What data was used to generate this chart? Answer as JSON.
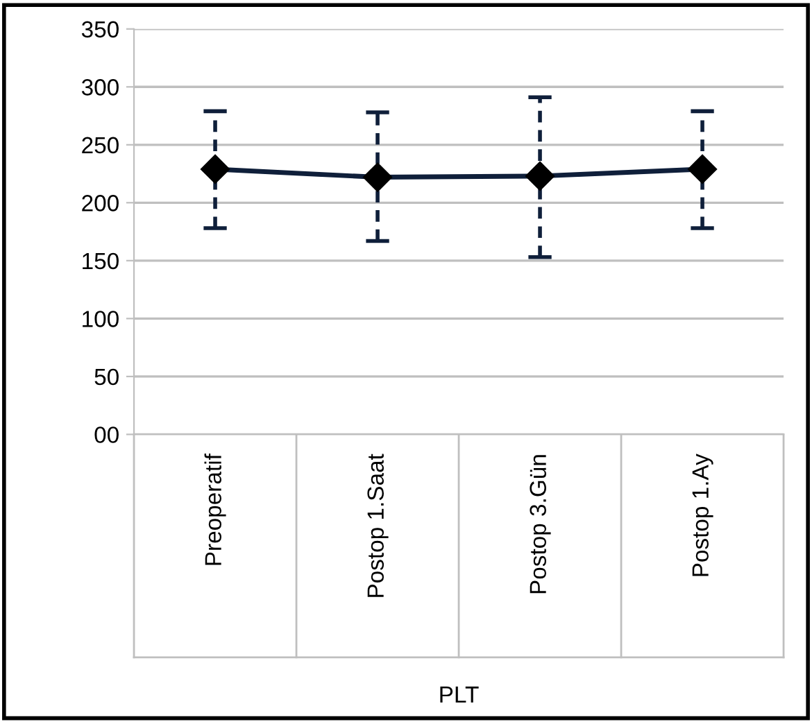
{
  "chart_data": {
    "type": "line",
    "categories": [
      "Preoperatif",
      "Postop 1.Saat",
      "Postop 3.Gün",
      "Postop 1.Ay"
    ],
    "xlabel": "PLT",
    "series": [
      {
        "color": "#0f1f3a",
        "values": [
          229,
          222,
          223,
          229
        ],
        "errors": [
          [
            178,
            279
          ],
          [
            167,
            278
          ],
          [
            153,
            291
          ],
          [
            178,
            279
          ]
        ]
      }
    ],
    "ylim": [
      0,
      350
    ],
    "yticks": [
      {
        "value": 0,
        "label": "00"
      },
      50,
      100,
      150,
      200,
      250,
      300,
      350
    ],
    "grid": "y",
    "marker": "diamond",
    "line_style": "solid"
  }
}
